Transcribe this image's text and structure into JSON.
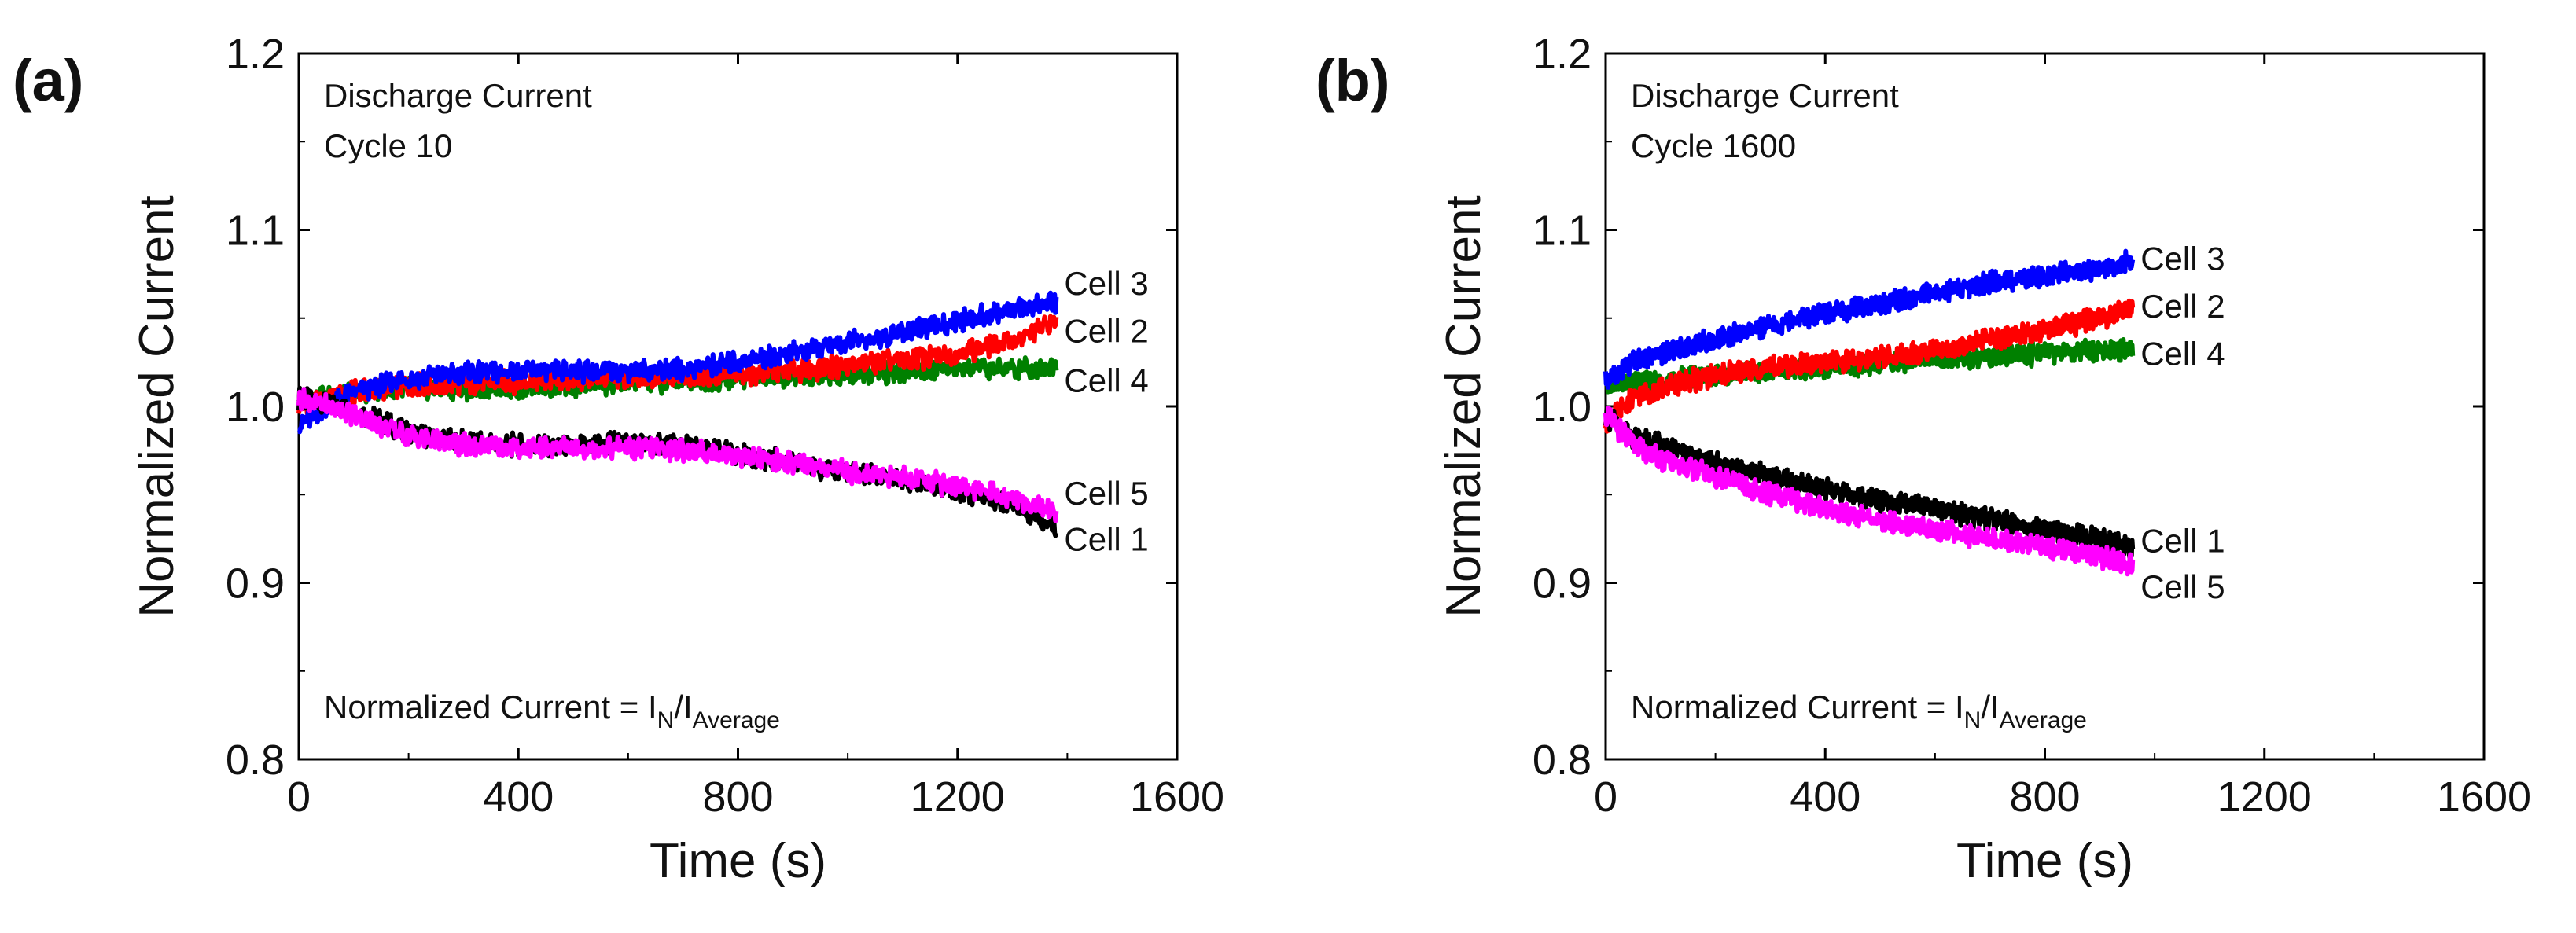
{
  "chart_data": [
    {
      "type": "line",
      "panel_label": "(a)",
      "title_lines": [
        "Discharge Current",
        "Cycle 10"
      ],
      "formula": {
        "prefix": "Normalized Current = I",
        "sub1": "N",
        "mid": "/I",
        "sub2": "Average"
      },
      "xlabel": "Time (s)",
      "ylabel": "Normalized Current",
      "xlim": [
        0,
        1600
      ],
      "ylim": [
        0.8,
        1.2
      ],
      "xticks": [
        0,
        400,
        800,
        1200,
        1600
      ],
      "xtick_labels": [
        "0",
        "400",
        "800",
        "1200",
        "1600"
      ],
      "yticks": [
        0.8,
        0.9,
        1.0,
        1.1,
        1.2
      ],
      "ytick_labels": [
        "0.8",
        "0.9",
        "1.0",
        "1.1",
        "1.2"
      ],
      "series": [
        {
          "name": "Cell 1",
          "color": "#000000",
          "x": [
            0,
            100,
            200,
            300,
            400,
            500,
            600,
            700,
            800,
            900,
            1000,
            1100,
            1200,
            1300,
            1380
          ],
          "values": [
            1.005,
            0.998,
            0.985,
            0.98,
            0.978,
            0.977,
            0.98,
            0.978,
            0.973,
            0.968,
            0.962,
            0.958,
            0.952,
            0.945,
            0.932
          ]
        },
        {
          "name": "Cell 2",
          "color": "#ff0000",
          "x": [
            0,
            100,
            200,
            300,
            400,
            500,
            600,
            700,
            800,
            900,
            1000,
            1100,
            1200,
            1300,
            1380
          ],
          "values": [
            1.0,
            1.008,
            1.012,
            1.013,
            1.014,
            1.015,
            1.016,
            1.017,
            1.018,
            1.02,
            1.023,
            1.026,
            1.03,
            1.037,
            1.048
          ]
        },
        {
          "name": "Cell 3",
          "color": "#0000ff",
          "x": [
            0,
            100,
            200,
            300,
            400,
            500,
            600,
            700,
            800,
            900,
            1000,
            1100,
            1200,
            1300,
            1380
          ],
          "values": [
            0.99,
            1.008,
            1.016,
            1.019,
            1.02,
            1.02,
            1.02,
            1.021,
            1.025,
            1.03,
            1.036,
            1.042,
            1.048,
            1.055,
            1.06
          ]
        },
        {
          "name": "Cell 4",
          "color": "#008000",
          "x": [
            0,
            100,
            200,
            300,
            400,
            500,
            600,
            700,
            800,
            900,
            1000,
            1100,
            1200,
            1300,
            1380
          ],
          "values": [
            1.005,
            1.008,
            1.01,
            1.01,
            1.011,
            1.012,
            1.013,
            1.014,
            1.016,
            1.017,
            1.018,
            1.02,
            1.021,
            1.022,
            1.022
          ]
        },
        {
          "name": "Cell 5",
          "color": "#ff00ff",
          "x": [
            0,
            100,
            200,
            300,
            400,
            500,
            600,
            700,
            800,
            900,
            1000,
            1100,
            1200,
            1300,
            1380
          ],
          "values": [
            1.005,
            0.995,
            0.983,
            0.978,
            0.977,
            0.976,
            0.977,
            0.975,
            0.972,
            0.968,
            0.963,
            0.96,
            0.955,
            0.948,
            0.94
          ]
        }
      ],
      "series_label_values": {
        "Cell 3": 1.07,
        "Cell 2": 1.043,
        "Cell 4": 1.015,
        "Cell 5": 0.951,
        "Cell 1": 0.925
      }
    },
    {
      "type": "line",
      "panel_label": "(b)",
      "title_lines": [
        "Discharge Current",
        "Cycle 1600"
      ],
      "formula": {
        "prefix": "Normalized Current = I",
        "sub1": "N",
        "mid": "/I",
        "sub2": "Average"
      },
      "xlabel": "Time (s)",
      "ylabel": "Normalized Current",
      "xlim": [
        0,
        1600
      ],
      "ylim": [
        0.8,
        1.2
      ],
      "xticks": [
        0,
        400,
        800,
        1200,
        1600
      ],
      "xtick_labels": [
        "0",
        "400",
        "800",
        "1200",
        "1600"
      ],
      "yticks": [
        0.8,
        0.9,
        1.0,
        1.1,
        1.2
      ],
      "ytick_labels": [
        "0.8",
        "0.9",
        "1.0",
        "1.1",
        "1.2"
      ],
      "series": [
        {
          "name": "Cell 1",
          "color": "#000000",
          "x": [
            0,
            50,
            100,
            200,
            300,
            400,
            500,
            600,
            700,
            800,
            900,
            960
          ],
          "values": [
            0.995,
            0.983,
            0.978,
            0.968,
            0.96,
            0.953,
            0.947,
            0.942,
            0.936,
            0.93,
            0.925,
            0.92
          ]
        },
        {
          "name": "Cell 2",
          "color": "#ff0000",
          "x": [
            0,
            50,
            100,
            200,
            300,
            400,
            500,
            600,
            700,
            800,
            900,
            960
          ],
          "values": [
            0.99,
            1.005,
            1.01,
            1.018,
            1.022,
            1.025,
            1.028,
            1.032,
            1.038,
            1.043,
            1.05,
            1.056
          ]
        },
        {
          "name": "Cell 3",
          "color": "#0000ff",
          "x": [
            0,
            50,
            100,
            200,
            300,
            400,
            500,
            600,
            700,
            800,
            900,
            960
          ],
          "values": [
            1.015,
            1.025,
            1.03,
            1.038,
            1.045,
            1.052,
            1.058,
            1.064,
            1.07,
            1.074,
            1.078,
            1.082
          ]
        },
        {
          "name": "Cell 4",
          "color": "#008000",
          "x": [
            0,
            50,
            100,
            200,
            300,
            400,
            500,
            600,
            700,
            800,
            900,
            960
          ],
          "values": [
            1.012,
            1.013,
            1.014,
            1.018,
            1.02,
            1.022,
            1.025,
            1.027,
            1.028,
            1.03,
            1.031,
            1.032
          ]
        },
        {
          "name": "Cell 5",
          "color": "#ff00ff",
          "x": [
            0,
            50,
            100,
            200,
            300,
            400,
            500,
            600,
            700,
            800,
            900,
            960
          ],
          "values": [
            0.995,
            0.978,
            0.97,
            0.96,
            0.95,
            0.942,
            0.935,
            0.93,
            0.925,
            0.92,
            0.915,
            0.91
          ]
        }
      ],
      "series_label_values": {
        "Cell 3": 1.084,
        "Cell 2": 1.057,
        "Cell 4": 1.03,
        "Cell 1": 0.924,
        "Cell 5": 0.898
      }
    }
  ]
}
